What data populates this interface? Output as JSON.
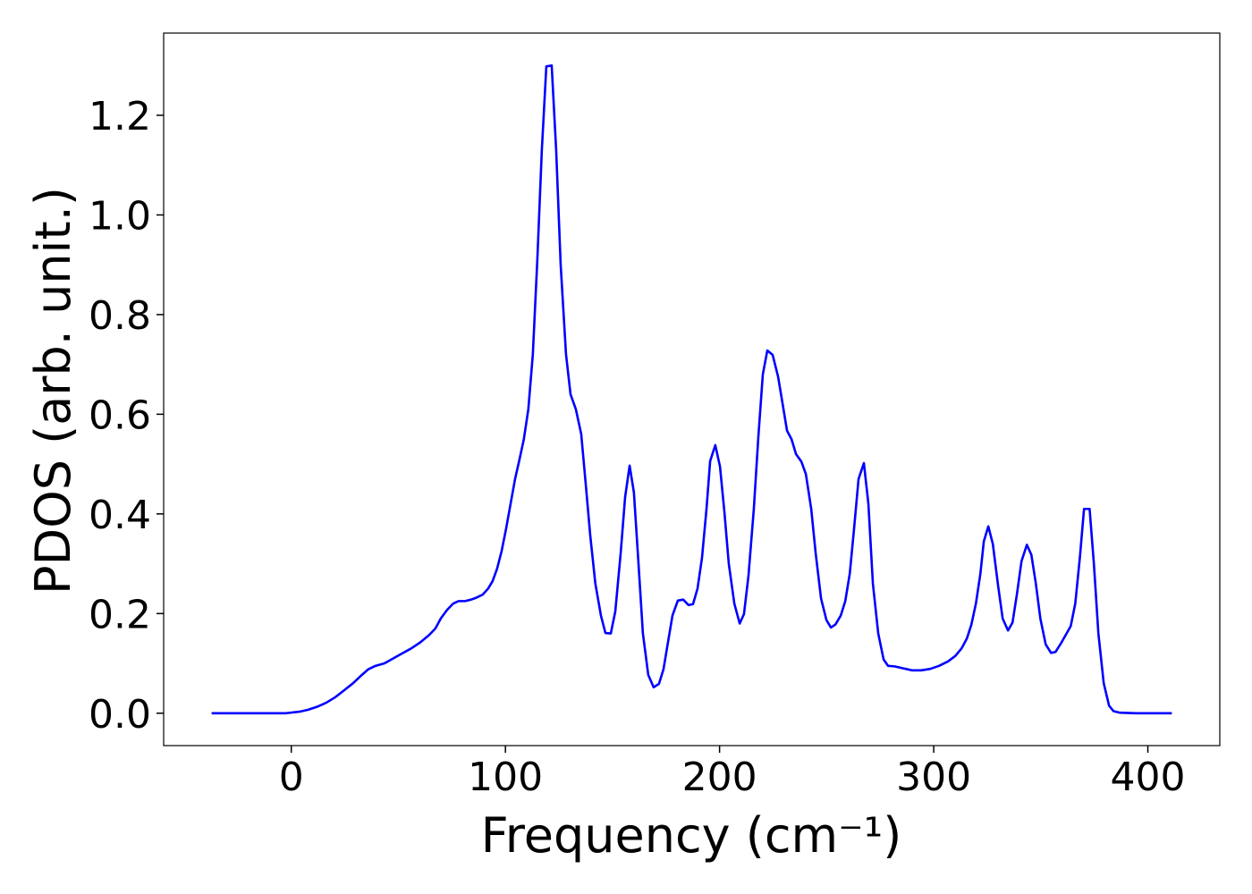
{
  "chart_data": {
    "type": "line",
    "xlabel": "Frequency (cm⁻¹)",
    "ylabel": "PDOS (arb. unit.)",
    "xlim": [
      -59.6,
      433.6
    ],
    "ylim": [
      -0.065,
      1.365
    ],
    "xticks": [
      0,
      100,
      200,
      300,
      400
    ],
    "yticks": [
      {
        "value": 0,
        "label": "0.0"
      },
      0.2,
      0.4,
      0.6,
      0.8,
      {
        "value": 1,
        "label": "1.0"
      },
      1.2
    ],
    "series": [
      {
        "color": "#0000ff",
        "x": [
          -37.2,
          -19.2,
          -2.5,
          3.8,
          7.9,
          12.1,
          16.3,
          20.5,
          24.7,
          28.8,
          33,
          35.9,
          39.3,
          43.5,
          47.6,
          51.8,
          56,
          60.2,
          64.4,
          67.3,
          69.8,
          72.7,
          75.6,
          78.1,
          81.1,
          84,
          86.5,
          89.4,
          91.9,
          94,
          96.1,
          98.2,
          100.3,
          102.4,
          104.5,
          106.6,
          108.6,
          110.7,
          112.8,
          114.9,
          117,
          119.1,
          121.6,
          123.7,
          125.8,
          128.3,
          130.4,
          132.9,
          135.4,
          137.5,
          139.6,
          142,
          144.6,
          146.7,
          149.2,
          151.3,
          153.8,
          155.9,
          158,
          160,
          162.1,
          164.2,
          166.7,
          169.2,
          171.7,
          173.8,
          175.9,
          178,
          180.5,
          183,
          185.5,
          187.6,
          189.7,
          191.8,
          193.9,
          195.6,
          198,
          200.2,
          202.3,
          204.3,
          206.9,
          209.4,
          211.4,
          213.5,
          216,
          218.1,
          220.2,
          222.3,
          224.8,
          227.3,
          229.4,
          231.5,
          233.6,
          235.7,
          238.2,
          240.3,
          242.8,
          244.9,
          247.4,
          249.9,
          252,
          254.1,
          256.6,
          258.7,
          260.8,
          262.8,
          264.9,
          267.4,
          269.5,
          271.6,
          274.1,
          276.6,
          278.7,
          281.7,
          285.8,
          290,
          294.2,
          298.4,
          302.5,
          306.7,
          310.1,
          313,
          315.5,
          317.6,
          319.7,
          321.8,
          323.4,
          325.5,
          327.6,
          330.1,
          332.2,
          334.7,
          336.8,
          338.9,
          341,
          343.5,
          345.6,
          347.7,
          349.8,
          352.3,
          354.8,
          356.9,
          359.4,
          361.5,
          364,
          366.1,
          368.2,
          370.2,
          372.8,
          374.8,
          376.9,
          379.4,
          381.9,
          384,
          387,
          394.5,
          411.2
        ],
        "values": [
          0,
          0,
          0,
          0.003,
          0.007,
          0.013,
          0.021,
          0.032,
          0.046,
          0.06,
          0.077,
          0.088,
          0.095,
          0.1,
          0.11,
          0.12,
          0.13,
          0.142,
          0.157,
          0.17,
          0.19,
          0.207,
          0.22,
          0.225,
          0.225,
          0.228,
          0.232,
          0.238,
          0.25,
          0.265,
          0.29,
          0.325,
          0.37,
          0.42,
          0.47,
          0.51,
          0.55,
          0.61,
          0.72,
          0.91,
          1.13,
          1.298,
          1.3,
          1.13,
          0.9,
          0.72,
          0.64,
          0.61,
          0.56,
          0.46,
          0.357,
          0.26,
          0.196,
          0.161,
          0.16,
          0.204,
          0.32,
          0.434,
          0.497,
          0.443,
          0.303,
          0.16,
          0.077,
          0.052,
          0.059,
          0.088,
          0.142,
          0.196,
          0.226,
          0.228,
          0.217,
          0.219,
          0.25,
          0.312,
          0.41,
          0.506,
          0.538,
          0.495,
          0.402,
          0.3,
          0.22,
          0.18,
          0.199,
          0.276,
          0.41,
          0.554,
          0.68,
          0.728,
          0.719,
          0.676,
          0.622,
          0.567,
          0.55,
          0.52,
          0.505,
          0.48,
          0.41,
          0.32,
          0.23,
          0.187,
          0.172,
          0.178,
          0.196,
          0.225,
          0.28,
          0.37,
          0.47,
          0.502,
          0.42,
          0.26,
          0.16,
          0.108,
          0.095,
          0.094,
          0.09,
          0.086,
          0.086,
          0.089,
          0.095,
          0.104,
          0.115,
          0.13,
          0.15,
          0.178,
          0.22,
          0.28,
          0.345,
          0.375,
          0.34,
          0.255,
          0.19,
          0.166,
          0.182,
          0.24,
          0.305,
          0.338,
          0.318,
          0.26,
          0.19,
          0.138,
          0.121,
          0.123,
          0.14,
          0.156,
          0.175,
          0.22,
          0.31,
          0.41,
          0.41,
          0.3,
          0.16,
          0.06,
          0.015,
          0.004,
          0.001,
          0,
          0
        ]
      }
    ]
  }
}
